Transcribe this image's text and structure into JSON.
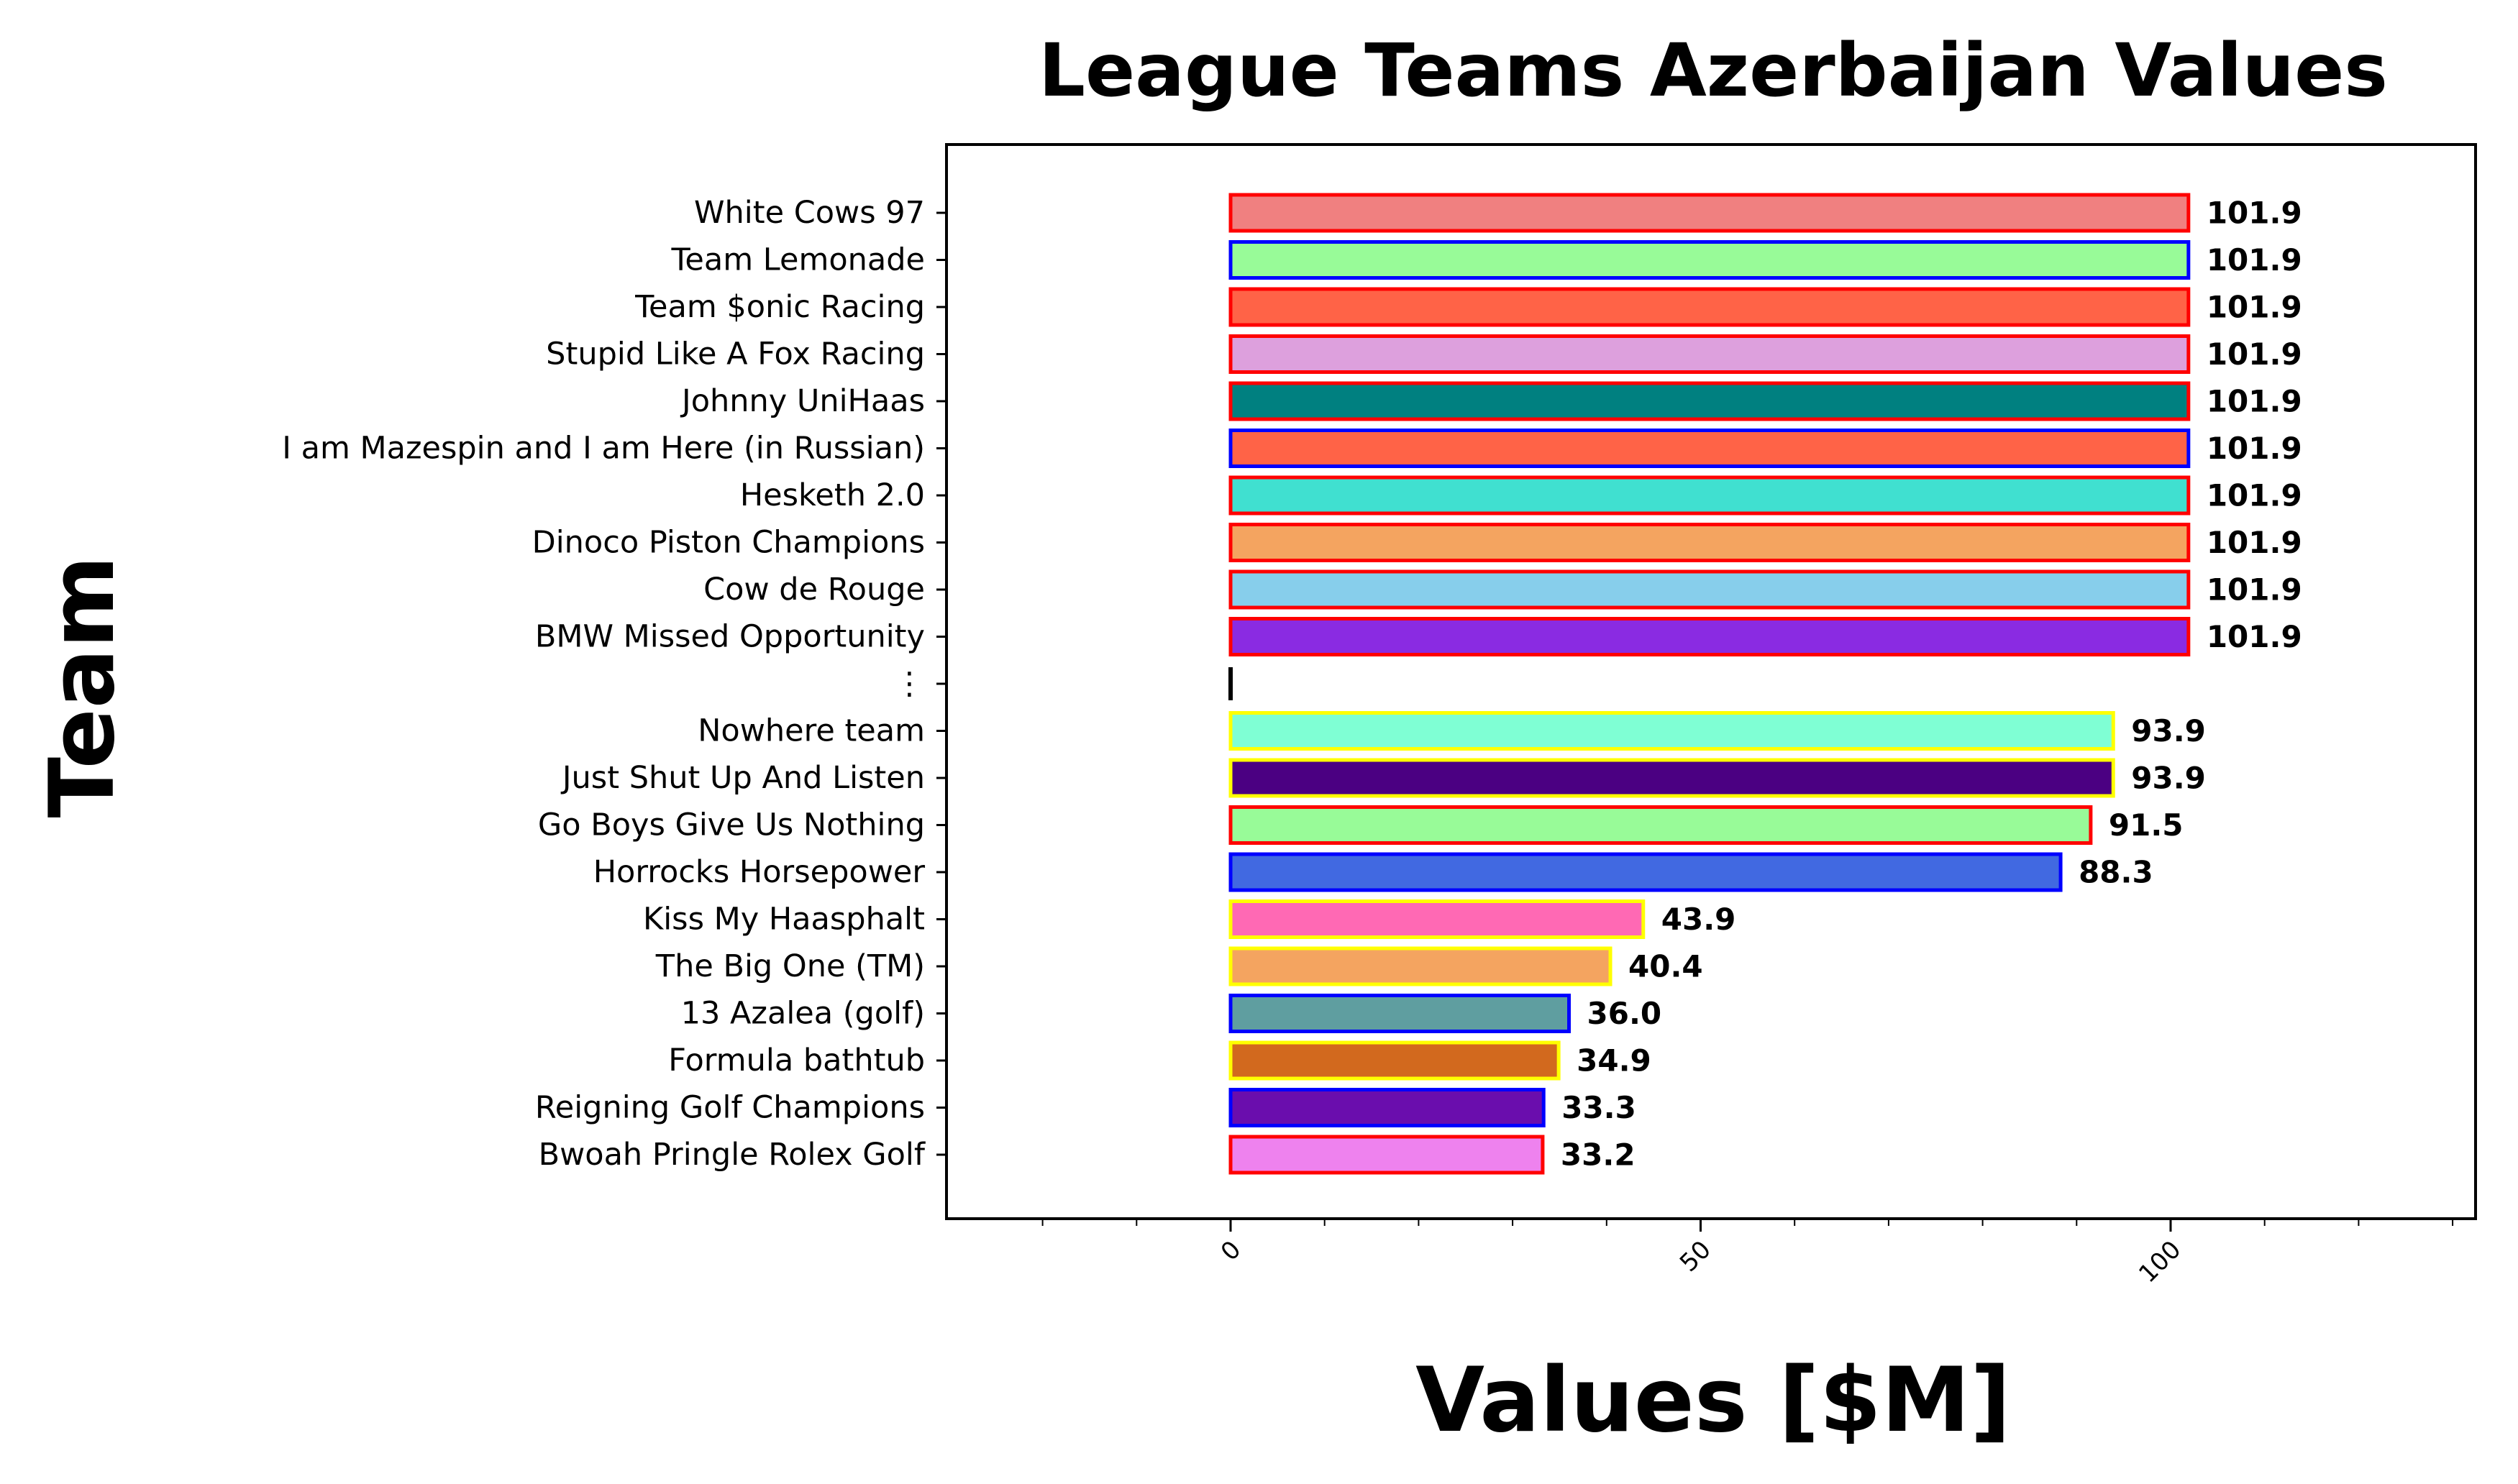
{
  "chart_data": {
    "type": "bar",
    "orientation": "horizontal",
    "title": "League Teams Azerbaijan Values",
    "xlabel": "Values [$M]",
    "ylabel": "Team",
    "xlim": [
      -30,
      132
    ],
    "xticks": [
      0,
      50,
      100
    ],
    "xtick_labels": [
      "0",
      "50",
      "100"
    ],
    "grid": false,
    "categories": [
      "White Cows 97",
      "Team Lemonade",
      "Team $onic Racing",
      "Stupid Like A Fox Racing",
      "Johnny UniHaas",
      "I am Mazespin and I am Here (in Russian)",
      "Hesketh 2.0",
      "Dinoco Piston Champions",
      "Cow de Rouge",
      "BMW Missed Opportunity",
      "⋮",
      "Nowhere team",
      "Just Shut Up And Listen",
      "Go Boys Give Us Nothing",
      "Horrocks Horsepower",
      "Kiss My Haasphalt",
      "The Big One (TM)",
      "13 Azalea (golf)",
      "Formula bathtub",
      "Reigning Golf Champions",
      "Bwoah Pringle Rolex Golf"
    ],
    "values": [
      101.9,
      101.9,
      101.9,
      101.9,
      101.9,
      101.9,
      101.9,
      101.9,
      101.9,
      101.9,
      null,
      93.9,
      93.9,
      91.5,
      88.3,
      43.9,
      40.4,
      36.0,
      34.9,
      33.3,
      33.2
    ],
    "value_labels": [
      "101.9",
      "101.9",
      "101.9",
      "101.9",
      "101.9",
      "101.9",
      "101.9",
      "101.9",
      "101.9",
      "101.9",
      "",
      "93.9",
      "93.9",
      "91.5",
      "88.3",
      "43.9",
      "40.4",
      "36.0",
      "34.9",
      "33.3",
      "33.2"
    ],
    "fill_colors": [
      "#f08080",
      "#98fb98",
      "#ff6347",
      "#dda0dd",
      "#008080",
      "#ff6347",
      "#40e0d0",
      "#f4a460",
      "#87ceeb",
      "#8a2be2",
      "",
      "#7fffd4",
      "#4b0082",
      "#98fb98",
      "#4169e1",
      "#ff69b4",
      "#f4a460",
      "#5f9ea0",
      "#d2691e",
      "#6a0dad",
      "#ee82ee"
    ],
    "edge_colors": [
      "#ff0000",
      "#0000ff",
      "#ff0000",
      "#ff0000",
      "#ff0000",
      "#0000ff",
      "#ff0000",
      "#ff0000",
      "#ff0000",
      "#ff0000",
      "",
      "#ffff00",
      "#ffff00",
      "#ff0000",
      "#0000ff",
      "#ffff00",
      "#ffff00",
      "#0000ff",
      "#ffff00",
      "#0000ff",
      "#ff0000"
    ]
  }
}
